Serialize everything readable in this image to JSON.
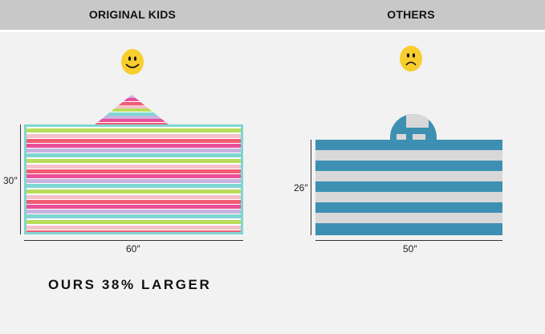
{
  "header": {
    "left_title": "ORIGINAL KIDS",
    "right_title": "OTHERS"
  },
  "left_product": {
    "face_icon": "happy-face-icon",
    "height_label": "30″",
    "width_label": "60″",
    "colors": {
      "teal": "#7fd6d2",
      "lime": "#b9dc5c",
      "pink": "#f5c1cb",
      "red": "#ef5c74",
      "magenta": "#ea4f98",
      "lavender": "#c8b3e0"
    }
  },
  "right_product": {
    "face_icon": "sad-face-icon",
    "height_label": "26″",
    "width_label": "50″",
    "colors": {
      "blue": "#3e90b2",
      "gray": "#d8d8d8"
    }
  },
  "claim": "OURS 38% LARGER"
}
